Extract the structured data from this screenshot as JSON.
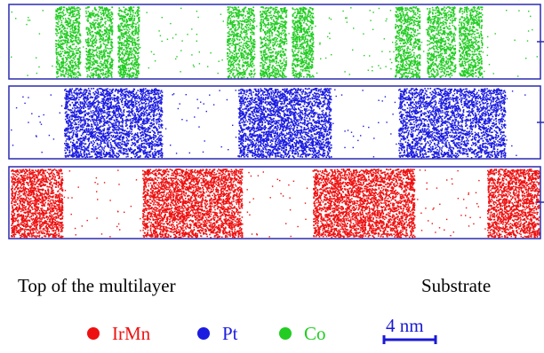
{
  "colors": {
    "irmn": "#ee1111",
    "pt": "#1c1ce0",
    "co": "#22cc22",
    "frame": "#2a2ab0"
  },
  "labels": {
    "left_arrow": "Top of the multilayer",
    "right_arrow": "Substrate"
  },
  "legend": [
    {
      "name": "IrMn",
      "color": "#ee1111"
    },
    {
      "name": "Pt",
      "color": "#1c1ce0"
    },
    {
      "name": "Co",
      "color": "#22cc22"
    }
  ],
  "scale_bar": {
    "label": "4 nm"
  }
}
